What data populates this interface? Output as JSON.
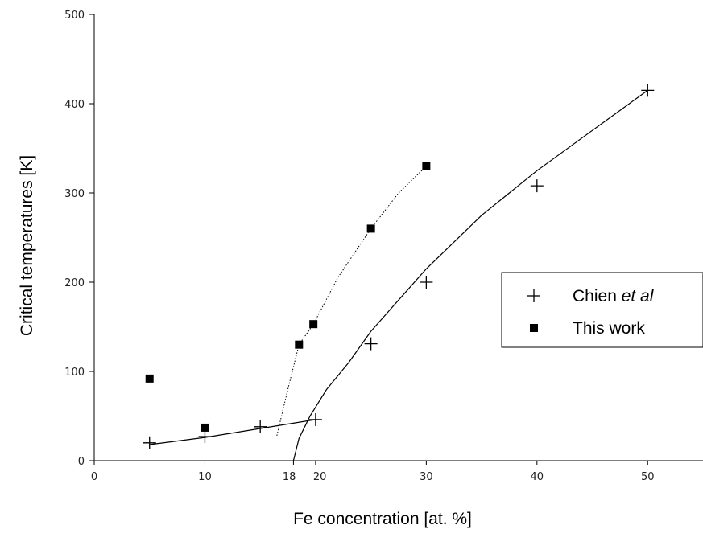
{
  "chart_data": {
    "type": "scatter",
    "xlabel": "Fe concentration [at. %]",
    "ylabel": "Critical temperatures [K]",
    "xlim": [
      0,
      55
    ],
    "ylim": [
      0,
      500
    ],
    "x_ticks": [
      {
        "value": 0,
        "label": "0"
      },
      {
        "value": 10,
        "label": "10"
      },
      {
        "value": 18,
        "label": "18"
      },
      {
        "value": 20,
        "label": "20"
      },
      {
        "value": 30,
        "label": "30"
      },
      {
        "value": 40,
        "label": "40"
      },
      {
        "value": 50,
        "label": "50"
      }
    ],
    "y_ticks": [
      {
        "value": 0,
        "label": "0"
      },
      {
        "value": 100,
        "label": "100"
      },
      {
        "value": 200,
        "label": "200"
      },
      {
        "value": 300,
        "label": "300"
      },
      {
        "value": 400,
        "label": "400"
      },
      {
        "value": 500,
        "label": "500"
      }
    ],
    "grid": false,
    "legend_position": "right",
    "series": [
      {
        "name_main": "Chien ",
        "name_em": "et al",
        "marker": "plus",
        "x": [
          5,
          10,
          15,
          20,
          25,
          30,
          40,
          50
        ],
        "y": [
          20,
          27,
          38,
          46,
          131,
          200,
          308,
          415
        ]
      },
      {
        "name_main": "This work",
        "marker": "square",
        "x": [
          5,
          10,
          18.5,
          19.8,
          25,
          30
        ],
        "y": [
          92,
          37,
          130,
          153,
          260,
          330
        ]
      }
    ],
    "curves": [
      {
        "style": "solid",
        "points": [
          [
            5,
            18
          ],
          [
            10,
            26
          ],
          [
            15,
            36
          ],
          [
            20,
            46
          ]
        ]
      },
      {
        "style": "solid",
        "points": [
          [
            18,
            0
          ],
          [
            18.5,
            25
          ],
          [
            19.5,
            50
          ],
          [
            21,
            80
          ],
          [
            23,
            110
          ],
          [
            25,
            145
          ],
          [
            27.5,
            180
          ],
          [
            30,
            215
          ],
          [
            35,
            275
          ],
          [
            40,
            325
          ],
          [
            45,
            370
          ],
          [
            50,
            415
          ]
        ]
      },
      {
        "style": "dotted",
        "points": [
          [
            16.5,
            28
          ],
          [
            17.5,
            80
          ],
          [
            18.5,
            130
          ],
          [
            19.8,
            153
          ],
          [
            22,
            205
          ],
          [
            25,
            260
          ],
          [
            27.5,
            300
          ],
          [
            30,
            330
          ]
        ]
      }
    ],
    "colors": {
      "marks": "#000000",
      "background": "#ffffff"
    }
  }
}
